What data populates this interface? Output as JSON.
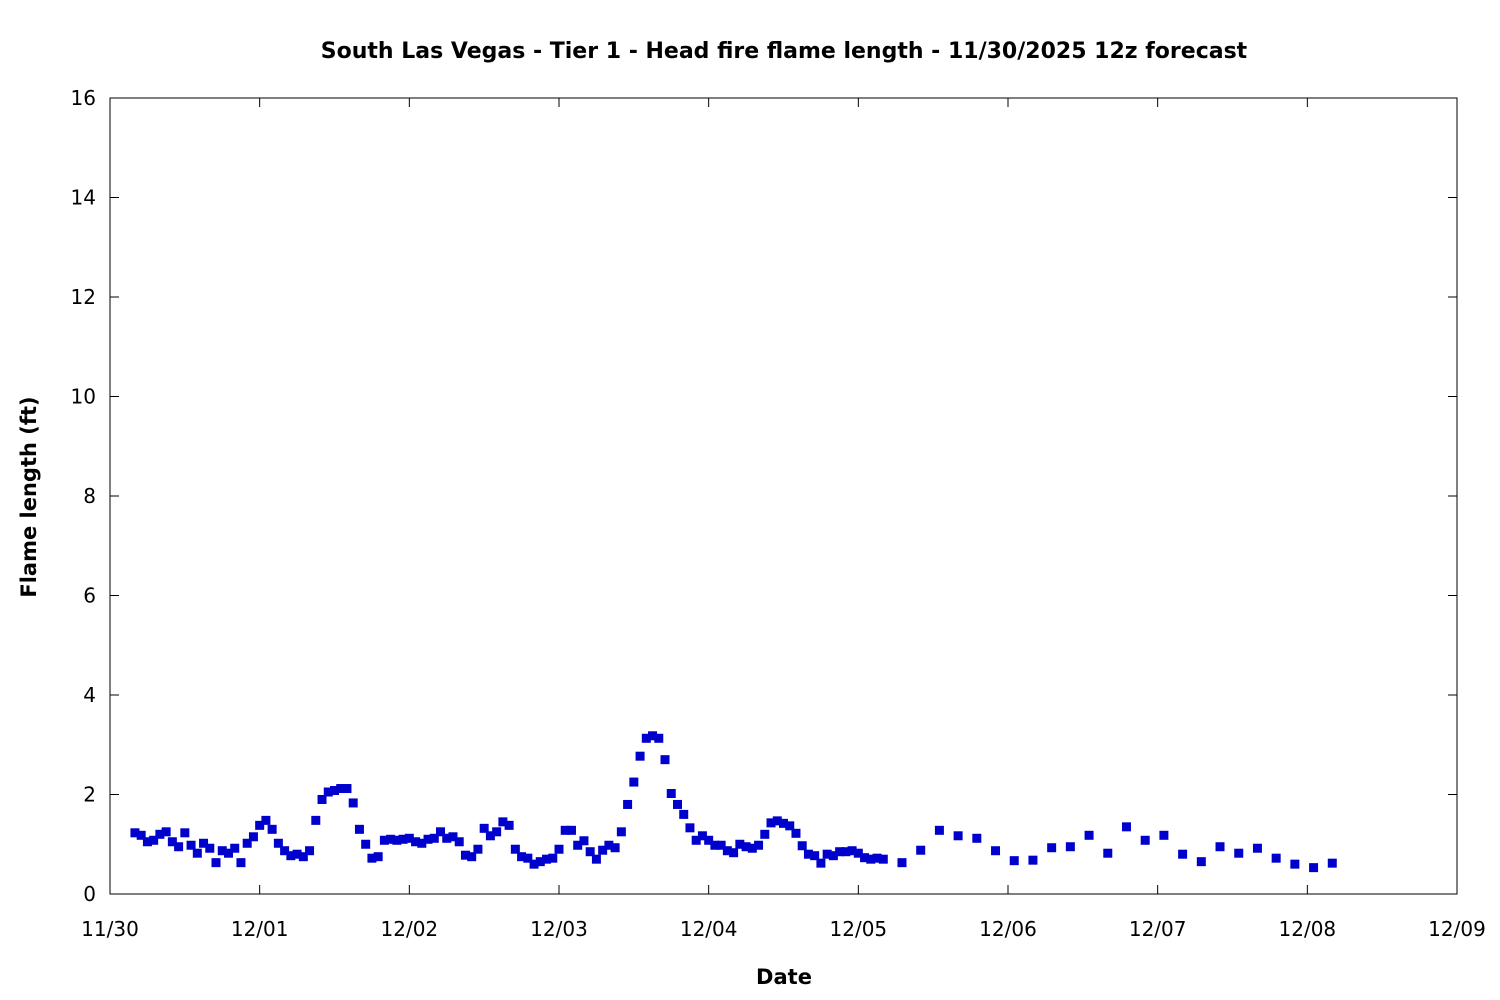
{
  "chart_data": {
    "type": "scatter",
    "title": "South Las Vegas - Tier 1 - Head fire flame length - 11/30/2025 12z forecast",
    "xlabel": "Date",
    "ylabel": "Flame length (ft)",
    "xlim": [
      "11/30",
      "12/09"
    ],
    "ylim": [
      0,
      16
    ],
    "x_ticks": [
      "11/30",
      "12/01",
      "12/02",
      "12/03",
      "12/04",
      "12/05",
      "12/06",
      "12/07",
      "12/08",
      "12/09"
    ],
    "y_ticks": [
      0,
      2,
      4,
      6,
      8,
      10,
      12,
      14,
      16
    ],
    "grid": false,
    "marker_color": "#0000cc",
    "series": [
      {
        "x": [
          "11/30 04:00",
          "11/30 05:00",
          "11/30 06:00",
          "11/30 07:00",
          "11/30 08:00",
          "11/30 09:00",
          "11/30 10:00",
          "11/30 11:00",
          "11/30 12:00",
          "11/30 13:00",
          "11/30 14:00",
          "11/30 15:00",
          "11/30 16:00",
          "11/30 17:00",
          "11/30 18:00",
          "11/30 19:00",
          "11/30 20:00",
          "11/30 21:00",
          "11/30 22:00",
          "11/30 23:00",
          "12/01 00:00",
          "12/01 01:00",
          "12/01 02:00",
          "12/01 03:00",
          "12/01 04:00",
          "12/01 05:00",
          "12/01 06:00",
          "12/01 07:00",
          "12/01 08:00",
          "12/01 09:00",
          "12/01 10:00",
          "12/01 11:00",
          "12/01 12:00",
          "12/01 13:00",
          "12/01 14:00",
          "12/01 15:00",
          "12/01 16:00",
          "12/01 17:00",
          "12/01 18:00",
          "12/01 19:00",
          "12/01 20:00",
          "12/01 21:00",
          "12/01 22:00",
          "12/01 23:00",
          "12/02 00:00",
          "12/02 01:00",
          "12/02 02:00",
          "12/02 03:00",
          "12/02 04:00",
          "12/02 05:00",
          "12/02 06:00",
          "12/02 07:00",
          "12/02 08:00",
          "12/02 09:00",
          "12/02 10:00",
          "12/02 11:00",
          "12/02 12:00",
          "12/02 13:00",
          "12/02 14:00",
          "12/02 15:00",
          "12/02 16:00",
          "12/02 17:00",
          "12/02 18:00",
          "12/02 19:00",
          "12/02 20:00",
          "12/02 21:00",
          "12/02 22:00",
          "12/02 23:00",
          "12/03 00:00",
          "12/03 01:00",
          "12/03 02:00",
          "12/03 03:00",
          "12/03 04:00",
          "12/03 05:00",
          "12/03 06:00",
          "12/03 07:00",
          "12/03 08:00",
          "12/03 09:00",
          "12/03 10:00",
          "12/03 11:00",
          "12/03 12:00",
          "12/03 13:00",
          "12/03 14:00",
          "12/03 15:00",
          "12/03 16:00",
          "12/03 17:00",
          "12/03 18:00",
          "12/03 19:00",
          "12/03 20:00",
          "12/03 21:00",
          "12/03 22:00",
          "12/03 23:00",
          "12/04 00:00",
          "12/04 01:00",
          "12/04 02:00",
          "12/04 03:00",
          "12/04 04:00",
          "12/04 05:00",
          "12/04 06:00",
          "12/04 07:00",
          "12/04 08:00",
          "12/04 09:00",
          "12/04 10:00",
          "12/04 11:00",
          "12/04 12:00",
          "12/04 13:00",
          "12/04 14:00",
          "12/04 15:00",
          "12/04 16:00",
          "12/04 17:00",
          "12/04 18:00",
          "12/04 19:00",
          "12/04 20:00",
          "12/04 21:00",
          "12/04 22:00",
          "12/04 23:00",
          "12/05 00:00",
          "12/05 01:00",
          "12/05 02:00",
          "12/05 03:00",
          "12/05 04:00",
          "12/05 07:00",
          "12/05 10:00",
          "12/05 13:00",
          "12/05 16:00",
          "12/05 19:00",
          "12/05 22:00",
          "12/06 01:00",
          "12/06 04:00",
          "12/06 07:00",
          "12/06 10:00",
          "12/06 13:00",
          "12/06 16:00",
          "12/06 19:00",
          "12/06 22:00",
          "12/07 01:00",
          "12/07 04:00",
          "12/07 07:00",
          "12/07 10:00",
          "12/07 13:00",
          "12/07 16:00",
          "12/07 19:00",
          "12/07 22:00",
          "12/08 01:00",
          "12/08 04:00"
        ],
        "values": [
          1.23,
          1.18,
          1.05,
          1.08,
          1.2,
          1.25,
          1.05,
          0.95,
          1.23,
          0.98,
          0.82,
          1.02,
          0.92,
          0.63,
          0.87,
          0.82,
          0.92,
          0.63,
          1.02,
          1.15,
          1.38,
          1.48,
          1.3,
          1.02,
          0.87,
          0.77,
          0.8,
          0.75,
          0.87,
          1.48,
          1.9,
          2.05,
          2.08,
          2.12,
          2.12,
          1.83,
          1.3,
          1.0,
          0.72,
          0.75,
          1.08,
          1.1,
          1.08,
          1.1,
          1.12,
          1.05,
          1.02,
          1.1,
          1.12,
          1.25,
          1.12,
          1.15,
          1.05,
          0.78,
          0.75,
          0.9,
          1.32,
          1.17,
          1.25,
          1.45,
          1.38,
          0.9,
          0.75,
          0.72,
          0.6,
          0.65,
          0.7,
          0.72,
          0.9,
          1.28,
          1.28,
          0.98,
          1.07,
          0.85,
          0.7,
          0.88,
          0.98,
          0.93,
          1.25,
          1.8,
          2.25,
          2.77,
          3.13,
          3.18,
          3.13,
          2.7,
          2.02,
          1.8,
          1.6,
          1.33,
          1.08,
          1.17,
          1.08,
          0.98,
          0.98,
          0.87,
          0.83,
          1.0,
          0.95,
          0.92,
          0.98,
          1.2,
          1.43,
          1.47,
          1.42,
          1.37,
          1.22,
          0.97,
          0.8,
          0.77,
          0.62,
          0.8,
          0.77,
          0.85,
          0.85,
          0.87,
          0.82,
          0.73,
          0.7,
          0.72,
          0.7,
          0.63,
          0.88,
          1.28,
          1.17,
          1.12,
          0.87,
          0.67,
          0.68,
          0.93,
          0.95,
          1.18,
          0.82,
          1.35,
          1.08,
          1.18,
          0.8,
          0.65,
          0.95,
          0.82,
          0.92,
          0.72,
          0.6,
          0.53,
          0.62
        ]
      }
    ]
  }
}
